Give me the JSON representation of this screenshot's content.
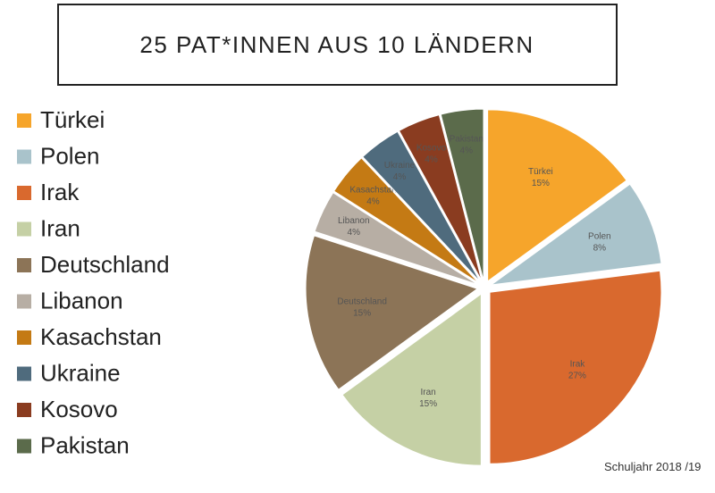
{
  "chart_data": {
    "type": "pie",
    "title": "25 PAT*INNEN AUS 10 LÄNDERN",
    "note": "Schuljahr 2018 /19",
    "categories": [
      "Türkei",
      "Polen",
      "Irak",
      "Iran",
      "Deutschland",
      "Libanon",
      "Kasachstan",
      "Ukraine",
      "Kosovo",
      "Pakistan"
    ],
    "values": [
      15,
      8,
      27,
      15,
      15,
      4,
      4,
      4,
      4,
      4
    ],
    "value_labels": [
      "15%",
      "8%",
      "27%",
      "15%",
      "15%",
      "4%",
      "4%",
      "4%",
      "4%",
      "4%"
    ],
    "colors": [
      "#f6a52b",
      "#a9c3cb",
      "#d9692e",
      "#c5d0a5",
      "#8c7457",
      "#b7aea4",
      "#c47a14",
      "#4f6b7d",
      "#8a3c20",
      "#5b6b4b"
    ],
    "legend": "left"
  }
}
